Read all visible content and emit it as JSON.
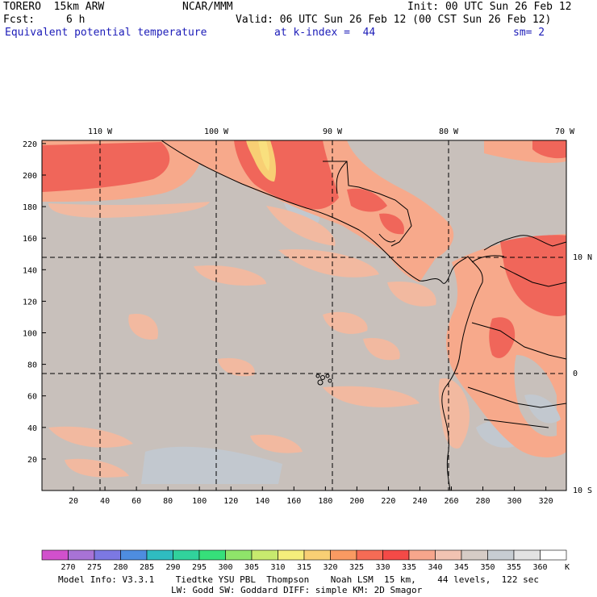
{
  "header": {
    "model": "TORERO  15km ARW",
    "org": "NCAR/MMM",
    "init": "Init: 00 UTC Sun 26 Feb 12",
    "fcst_label": "Fcst:",
    "fcst_value": "6 h",
    "valid": "Valid: 06 UTC Sun 26 Feb 12 (00 CST Sun 26 Feb 12)",
    "field": "Equivalent potential temperature",
    "level": "at k-index =  44",
    "smoothing": "sm= 2"
  },
  "map": {
    "lon_labels": [
      "110 W",
      "100 W",
      "90 W",
      "80 W",
      "70 W"
    ],
    "lat_labels": [
      "10 N",
      "0",
      "10 S"
    ],
    "x_ticks": [
      "20",
      "40",
      "60",
      "80",
      "100",
      "120",
      "140",
      "160",
      "180",
      "200",
      "220",
      "240",
      "260",
      "280",
      "300",
      "320"
    ],
    "y_ticks": [
      "20",
      "40",
      "60",
      "80",
      "100",
      "120",
      "140",
      "160",
      "180",
      "200",
      "220"
    ],
    "colors": {
      "background_ocean": "#c8c0bb",
      "warm_340": "#f2b9a0",
      "warm_335": "#f7a98b",
      "warm_330": "#f0665a",
      "warm_325": "#f55d4d",
      "warm_320": "#f7b87a",
      "warm_315": "#f9e07e",
      "cool_350": "#c2c8cf"
    }
  },
  "colorbar": {
    "unit": "K",
    "labels": [
      "270",
      "275",
      "280",
      "285",
      "290",
      "295",
      "300",
      "305",
      "310",
      "315",
      "320",
      "325",
      "330",
      "335",
      "340",
      "345",
      "350",
      "355",
      "360"
    ],
    "colors": [
      "#d150cc",
      "#a873d6",
      "#7c78e2",
      "#4e8de0",
      "#2fbcc0",
      "#31d29c",
      "#36e07a",
      "#8fe46a",
      "#c8ea6e",
      "#f5ee7b",
      "#f8cf74",
      "#f99a62",
      "#f66b55",
      "#f44a47",
      "#f7a68c",
      "#f2c3b2",
      "#d6ccc6",
      "#c7cdd2",
      "#e3e3e3",
      "#ffffff"
    ]
  },
  "footer": {
    "line1": "Model Info: V3.3.1    Tiedtke YSU PBL  Thompson    Noah LSM  15 km,    44 levels,  122 sec",
    "line2": "LW: Godd SW: Goddard DIFF: simple KM: 2D Smagor"
  }
}
